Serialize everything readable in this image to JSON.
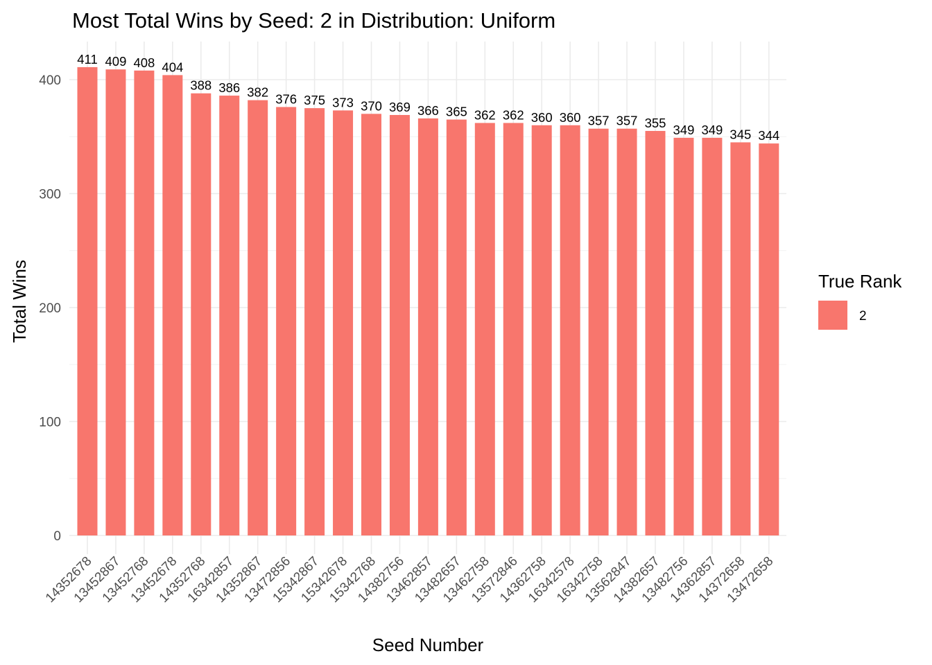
{
  "chart_data": {
    "type": "bar",
    "title": "Most Total Wins by Seed: 2 in Distribution: Uniform",
    "xlabel": "Seed Number",
    "ylabel": "Total Wins",
    "ylim": [
      0,
      420
    ],
    "yticks": [
      0,
      100,
      200,
      300,
      400
    ],
    "grid": true,
    "bar_color": "#F8766D",
    "legend": {
      "title": "True Rank",
      "placement": "right",
      "entries": [
        {
          "label": "2",
          "color": "#F8766D"
        }
      ]
    },
    "categories": [
      "14352678",
      "13452867",
      "13452768",
      "13452678",
      "14352768",
      "16342857",
      "14352867",
      "13472856",
      "15342867",
      "15342678",
      "15342768",
      "14382756",
      "13462857",
      "13482657",
      "13462758",
      "13572846",
      "14362758",
      "16342578",
      "16342758",
      "13562847",
      "14382657",
      "13482756",
      "14362857",
      "14372658",
      "13472658"
    ],
    "values": [
      411,
      409,
      408,
      404,
      388,
      386,
      382,
      376,
      375,
      373,
      370,
      369,
      366,
      365,
      362,
      362,
      360,
      360,
      357,
      357,
      355,
      349,
      349,
      345,
      344
    ]
  }
}
